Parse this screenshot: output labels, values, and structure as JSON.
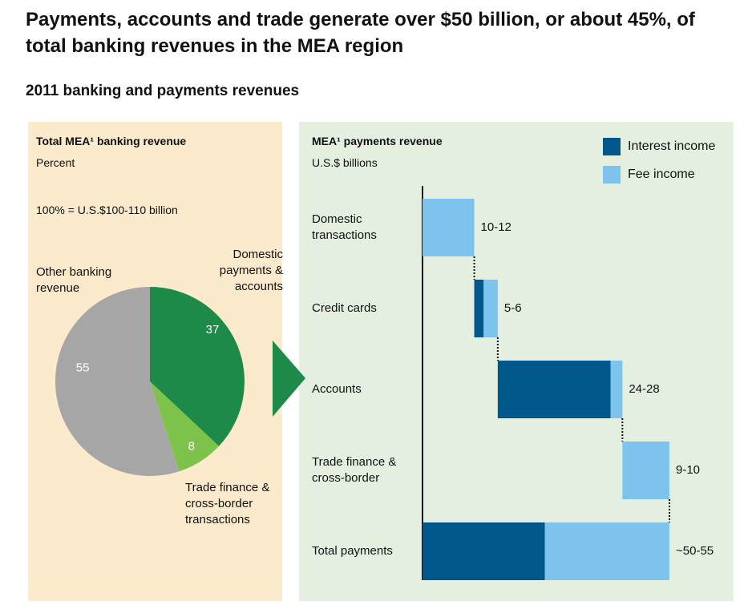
{
  "title": "Payments, accounts and trade generate over $50 billion, or about 45%, of total banking revenues in the MEA region",
  "subtitle": "2011 banking and payments revenues",
  "chart_data": [
    {
      "type": "pie",
      "title": "Total MEA¹ banking revenue",
      "subtitle": "Percent",
      "note": "100% = U.S.$100-110 billion",
      "categories": [
        "Domestic payments & accounts",
        "Trade finance & cross-border transactions",
        "Other banking revenue"
      ],
      "values": [
        37,
        8,
        55
      ],
      "colors": [
        "#1e8a4a",
        "#7dc24b",
        "#a6a6a6"
      ]
    },
    {
      "type": "waterfall",
      "title": "MEA¹ payments revenue",
      "subtitle": "U.S.$ billions",
      "categories": [
        "Domestic transactions",
        "Credit cards",
        "Accounts",
        "Trade finance & cross-border",
        "Total payments"
      ],
      "series": [
        {
          "name": "Interest income",
          "color": "#00578a",
          "values": [
            0,
            2,
            24,
            0,
            26
          ]
        },
        {
          "name": "Fee income",
          "color": "#7cc3ee",
          "values": [
            11,
            3,
            2.5,
            10,
            26.5
          ]
        }
      ],
      "value_labels": [
        "10-12",
        "5-6",
        "24-28",
        "9-10",
        "~50-55"
      ],
      "xlim": [
        0,
        60
      ],
      "legend": "top-right"
    }
  ]
}
